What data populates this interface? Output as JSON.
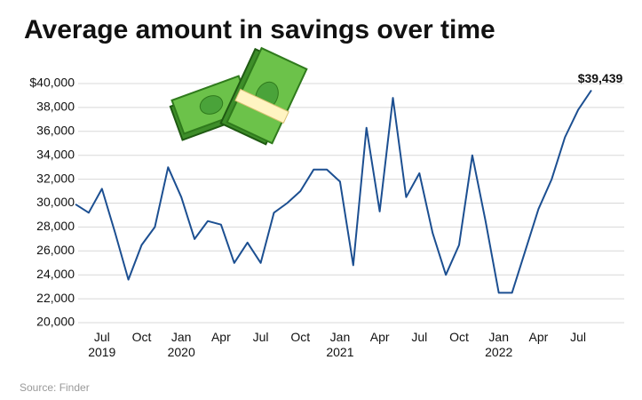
{
  "chart_data": {
    "type": "line",
    "title": "Average amount in savings over time",
    "source": "Source: Finder",
    "categories": [
      null,
      null,
      "Jul 2019",
      null,
      null,
      "Oct",
      null,
      null,
      "Jan 2020",
      null,
      null,
      "Apr",
      null,
      null,
      "Jul",
      null,
      null,
      "Oct",
      null,
      null,
      "Jan 2021",
      null,
      null,
      "Apr",
      null,
      null,
      "Jul",
      null,
      null,
      "Oct",
      null,
      null,
      "Jan 2022",
      null,
      null,
      "Apr",
      null,
      null,
      "Jul",
      null
    ],
    "series": [
      {
        "color": "#1c4f91",
        "values": [
          29900,
          29200,
          31200,
          27500,
          23600,
          26500,
          28000,
          33000,
          30500,
          27000,
          28500,
          28200,
          25000,
          26700,
          25000,
          29200,
          30000,
          31000,
          32800,
          32800,
          31800,
          24800,
          36300,
          29300,
          38800,
          30500,
          32500,
          27500,
          24000,
          26500,
          34000,
          28500,
          22500,
          22500,
          26000,
          29500,
          32000,
          35500,
          37800,
          39439
        ],
        "value_labels": [
          null,
          null,
          null,
          null,
          null,
          null,
          null,
          null,
          null,
          null,
          null,
          null,
          null,
          null,
          null,
          null,
          null,
          null,
          null,
          null,
          null,
          null,
          null,
          null,
          null,
          null,
          null,
          null,
          null,
          null,
          null,
          null,
          null,
          null,
          null,
          null,
          null,
          null,
          null,
          "$39,439"
        ]
      }
    ],
    "ylim": [
      20000,
      40000
    ],
    "yticks": [
      {
        "value": 20000,
        "label": "20,000"
      },
      {
        "value": 22000,
        "label": "22,000"
      },
      {
        "value": 24000,
        "label": "24,000"
      },
      {
        "value": 26000,
        "label": "26,000"
      },
      {
        "value": 28000,
        "label": "28,000"
      },
      {
        "value": 30000,
        "label": "30,000"
      },
      {
        "value": 32000,
        "label": "32,000"
      },
      {
        "value": 34000,
        "label": "34,000"
      },
      {
        "value": 36000,
        "label": "36,000"
      },
      {
        "value": 38000,
        "label": "38,000"
      },
      {
        "value": 40000,
        "label": "$40,000"
      }
    ],
    "grid": true
  }
}
